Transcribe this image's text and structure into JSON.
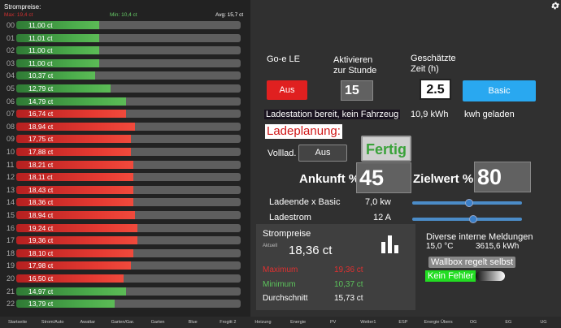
{
  "left": {
    "title": "Strompreise:",
    "max": "Max: 19,4 ct",
    "min": "Min: 10,4 ct",
    "avg": "Avg: 15,7 ct",
    "rows": [
      {
        "hour": "00",
        "price": "11,00 ct",
        "level": 0.37,
        "color": "green"
      },
      {
        "hour": "01",
        "price": "11,01 ct",
        "level": 0.37,
        "color": "green"
      },
      {
        "hour": "02",
        "price": "11,00 ct",
        "level": 0.37,
        "color": "green"
      },
      {
        "hour": "03",
        "price": "11,00 ct",
        "level": 0.37,
        "color": "green"
      },
      {
        "hour": "04",
        "price": "10,37 ct",
        "level": 0.35,
        "color": "green"
      },
      {
        "hour": "05",
        "price": "12,79 ct",
        "level": 0.42,
        "color": "green"
      },
      {
        "hour": "06",
        "price": "14,79 ct",
        "level": 0.49,
        "color": "green"
      },
      {
        "hour": "07",
        "price": "16,74 ct",
        "level": 0.49,
        "color": "red"
      },
      {
        "hour": "08",
        "price": "18,94 ct",
        "level": 0.53,
        "color": "red"
      },
      {
        "hour": "09",
        "price": "17,75 ct",
        "level": 0.51,
        "color": "red"
      },
      {
        "hour": "10",
        "price": "17,88 ct",
        "level": 0.51,
        "color": "red"
      },
      {
        "hour": "11",
        "price": "18,21 ct",
        "level": 0.52,
        "color": "red"
      },
      {
        "hour": "12",
        "price": "18,11 ct",
        "level": 0.52,
        "color": "red"
      },
      {
        "hour": "13",
        "price": "18,43 ct",
        "level": 0.52,
        "color": "red"
      },
      {
        "hour": "14",
        "price": "18,36 ct",
        "level": 0.52,
        "color": "red"
      },
      {
        "hour": "15",
        "price": "18,94 ct",
        "level": 0.53,
        "color": "red"
      },
      {
        "hour": "16",
        "price": "19,24 ct",
        "level": 0.54,
        "color": "red"
      },
      {
        "hour": "17",
        "price": "19,36 ct",
        "level": 0.54,
        "color": "red"
      },
      {
        "hour": "18",
        "price": "18,10 ct",
        "level": 0.52,
        "color": "red"
      },
      {
        "hour": "19",
        "price": "17,98 ct",
        "level": 0.51,
        "color": "red"
      },
      {
        "hour": "20",
        "price": "16,50 ct",
        "level": 0.48,
        "color": "red"
      },
      {
        "hour": "21",
        "price": "14,97 ct",
        "level": 0.49,
        "color": "green"
      },
      {
        "hour": "22",
        "price": "13,79 ct",
        "level": 0.44,
        "color": "green"
      }
    ]
  },
  "settings_icon": "gear-icon",
  "charger": {
    "title": "Go-e LE",
    "aktivieren_label": "Aktivieren\nzur Stunde",
    "zeit_label": "Geschätzte\nZeit (h)",
    "aus_button": "Aus",
    "stunde_value": "15",
    "zeit_value": "2.5",
    "basic_button": "Basic",
    "status": "Ladestation bereit, kein Fahrzeug",
    "energy": "10,9 kWh",
    "energy_label": "kwh geladen",
    "ladeplanung": "Ladeplanung:",
    "volllad_label": "Volllad.",
    "volllad_button": "Aus",
    "fertig_button": "Fertig",
    "ankunft_label": "Ankunft %",
    "ankunft_value": "45",
    "zielwert_label": "Zielwert %",
    "zielwert_value": "80",
    "ladeende_label": "Ladeende x Basic",
    "ladeende_value": "7,0 kw",
    "ladeende_level": 0.52,
    "ladestrom_label": "Ladestrom",
    "ladestrom_value": "12 A",
    "ladestrom_level": 0.5
  },
  "pricecard": {
    "title": "Strompreise",
    "aktuell_label": "Aktuell",
    "current": "18,36 ct",
    "icon": "bar-chart-icon",
    "maximum_label": "Maximum",
    "maximum_value": "19,36 ct",
    "minimum_label": "Minimum",
    "minimum_value": "10,37 ct",
    "avg_label": "Durchschnitt",
    "avg_value": "15,73 ct",
    "colors": {
      "max": "#e03030",
      "min": "#5cc45c"
    }
  },
  "messages": {
    "title": "Diverse interne Meldungen",
    "temp": "15,0 °C",
    "kwh": "3615,6 kWh",
    "wallbox": "Wallbox regelt selbst",
    "error": "Kein Fehler"
  },
  "nav": [
    "Startseite",
    "Strom/Auto",
    "Awattar",
    "Garten/Gar.",
    "Garten",
    "Blue",
    "Frogitt 2",
    "Heizung",
    "Energie",
    "PV",
    "Wetter1",
    "ESP",
    "Energie Übers",
    "OG",
    "EG",
    "UG"
  ]
}
